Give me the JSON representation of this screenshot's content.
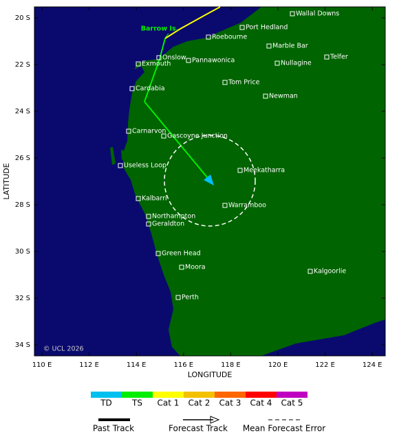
{
  "map": {
    "place_labels": [
      "Wallal Downs",
      "Port Hedland",
      "Roebourne",
      "Marble Bar",
      "Onslow",
      "Telfer",
      "Pannawonica",
      "Exmouth",
      "Nullagine",
      "Tom Price",
      "Cardabia",
      "Newman",
      "Carnarvon",
      "Gascoyne Junction",
      "Meekatharra",
      "Useless Loop",
      "Kalbarri",
      "Warramboo",
      "Northampton",
      "Geraldton",
      "Green Head",
      "Moora",
      "Kalgoorlie",
      "Perth"
    ],
    "island_label": "Barrow Is.",
    "copyright": "© UCL 2026",
    "x_axis": {
      "label": "LONGITUDE",
      "ticks": [
        "110 E",
        "112 E",
        "114 E",
        "116 E",
        "118 E",
        "120 E",
        "122 E",
        "124 E"
      ]
    },
    "y_axis": {
      "label": "LATITUDE",
      "ticks": [
        "20 S",
        "22 S",
        "24 S",
        "26 S",
        "28 S",
        "30 S",
        "32 S",
        "34 S"
      ]
    }
  },
  "legend": {
    "intensity": [
      "TD",
      "TS",
      "Cat 1",
      "Cat 2",
      "Cat 3",
      "Cat 4",
      "Cat 5"
    ],
    "tracks": [
      "Past Track",
      "Forecast Track",
      "Mean Forecast Error"
    ]
  }
}
